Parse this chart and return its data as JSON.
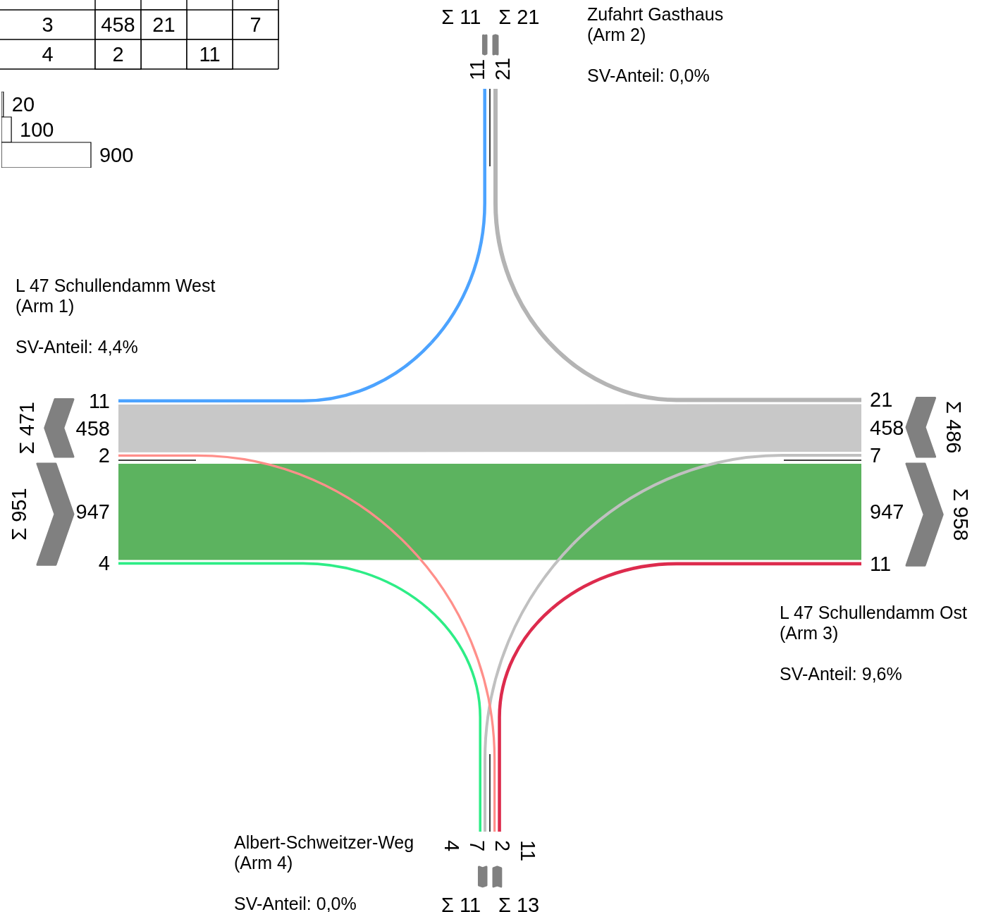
{
  "chart_data": [
    {
      "type": "other",
      "categories": [
        "3",
        "4"
      ],
      "series": [
        {
          "values": [
            458,
            2
          ]
        },
        {
          "values": [
            21,
            null
          ]
        },
        {
          "values": [
            null,
            11
          ]
        },
        {
          "values": [
            7,
            null
          ]
        }
      ],
      "data_labels": true
    },
    {
      "type": "bar",
      "orientation": "horizontal",
      "categories": [
        null,
        null,
        null
      ],
      "values": [
        20,
        100,
        900
      ],
      "color": "#ffffff",
      "data_labels": true
    },
    {
      "type": "other",
      "categories": [
        "L 47 Schullendamm West\n(Arm 1)",
        "Zufahrt Gasthaus\n(Arm 2)",
        "L 47 Schullendamm Ost\n(Arm 3)",
        "Albert-Schweitzer-Weg\n(Arm 4)"
      ],
      "annotations": [
        "SV-Anteil: 4,4%",
        "SV-Anteil: 0,0%",
        "SV-Anteil: 9,6%",
        "SV-Anteil: 0,0%"
      ],
      "series": [
        {
          "values": [
            null,
            null,
            947,
            4
          ],
          "colors": [
            null,
            null,
            "#5cb35f",
            "#2ded86"
          ]
        },
        {
          "values": [
            null,
            11,
            458,
            2
          ],
          "colors": [
            null,
            "#4ca3ff",
            "#c8c8c8",
            "#ff8f8a"
          ]
        },
        {
          "values": [
            11,
            null,
            null,
            null
          ],
          "colors": [
            "#4ca3ff",
            null,
            null,
            null
          ]
        },
        {
          "values": [
            null,
            null,
            21,
            null
          ],
          "colors": [
            null,
            null,
            "#b4b4b4",
            null
          ]
        },
        {
          "values": [
            458,
            21,
            null,
            7
          ],
          "colors": [
            "#c8c8c8",
            "#b4b4b4",
            null,
            "#c0c0c0"
          ]
        },
        {
          "values": [
            947,
            null,
            null,
            11
          ],
          "colors": [
            "#5cb35f",
            null,
            null,
            "#dd2b4d"
          ]
        },
        {
          "values": [
            2,
            null,
            11,
            null
          ],
          "colors": [
            "#ff8f8a",
            null,
            "#dd2b4d",
            null
          ]
        },
        {
          "values": [
            4,
            null,
            7,
            null
          ],
          "colors": [
            "#2ded86",
            null,
            "#c0c0c0",
            null
          ]
        }
      ],
      "data_labels": true,
      "totals": [
        [
          "Σ 951",
          "Σ 471"
        ],
        [
          "Σ 11",
          "Σ 21"
        ],
        [
          "Σ 486",
          "Σ 958"
        ],
        [
          "Σ 13",
          "Σ 11"
        ]
      ]
    }
  ]
}
